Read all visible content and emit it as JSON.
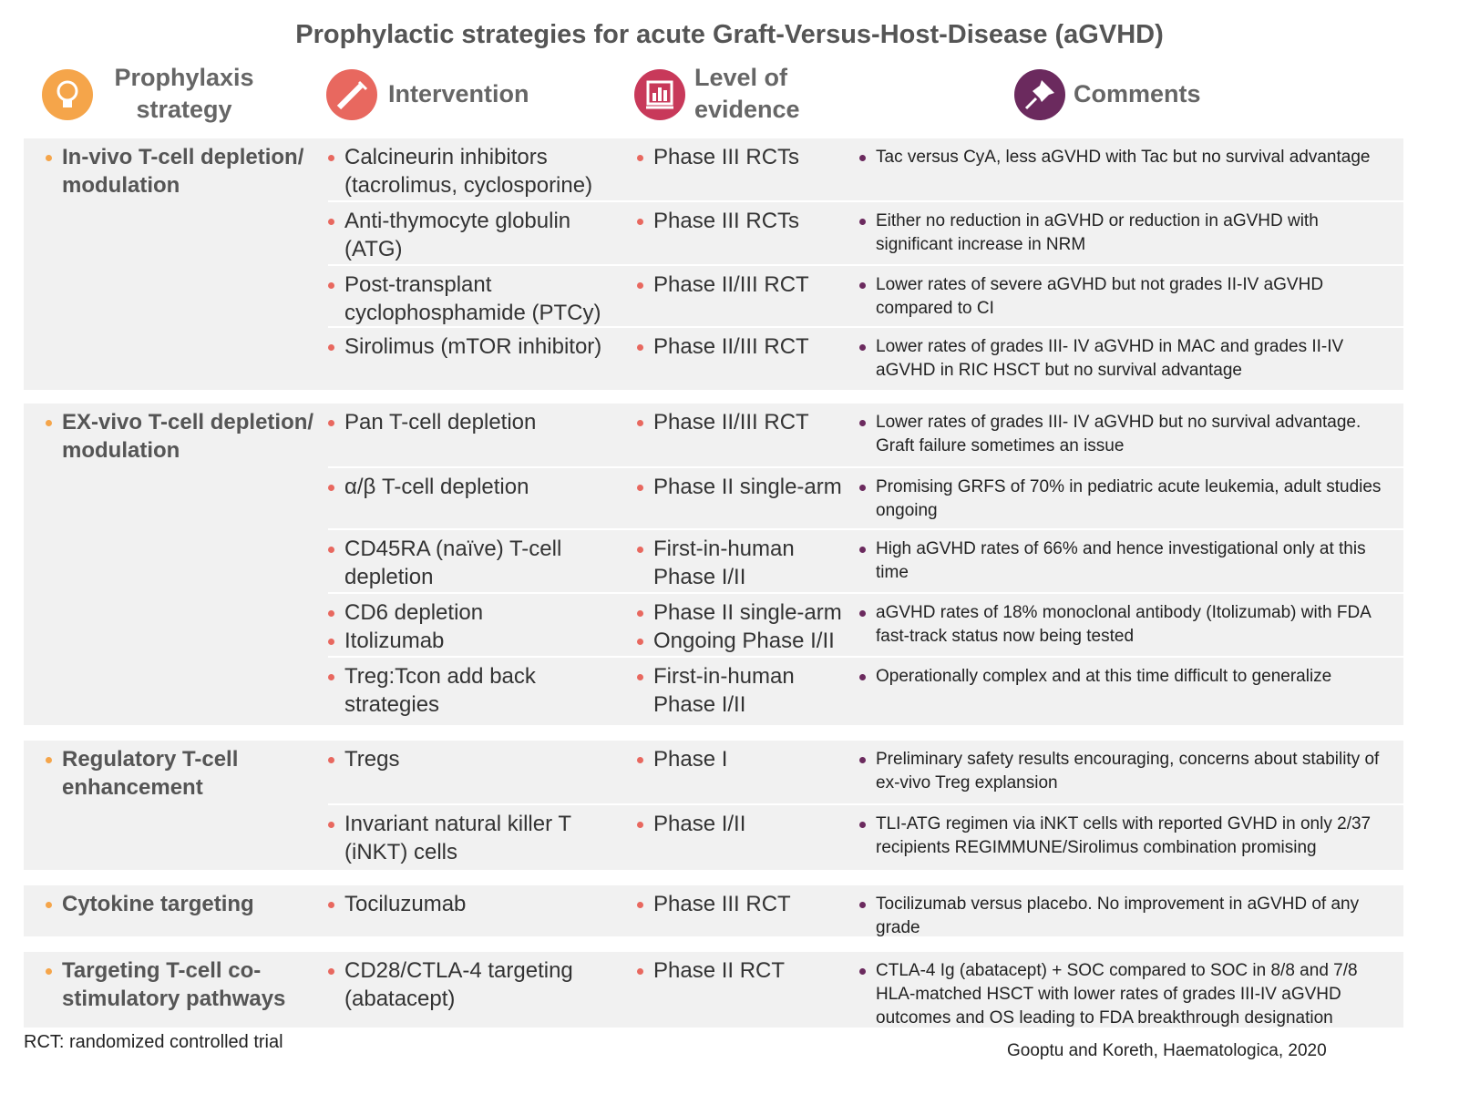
{
  "title": "Prophylactic strategies for acute Graft-Versus-Host-Disease (aGVHD)",
  "headers": [
    "Prophylaxis strategy",
    "Intervention",
    "Level of evidence",
    "Comments"
  ],
  "groups": [
    {
      "strategy": "In-vivo T-cell depletion/ modulation",
      "rows": [
        {
          "interventions": [
            "Calcineurin inhibitors (tacrolimus, cyclosporine)"
          ],
          "evidence": [
            "Phase III RCTs"
          ],
          "comment": "Tac versus CyA, less aGVHD with Tac but no survival advantage"
        },
        {
          "interventions": [
            "Anti-thymocyte globulin (ATG)"
          ],
          "evidence": [
            "Phase III RCTs"
          ],
          "comment": "Either no reduction in aGVHD or reduction in aGVHD with significant increase in NRM"
        },
        {
          "interventions": [
            "Post-transplant cyclophosphamide (PTCy)"
          ],
          "evidence": [
            "Phase II/III RCT"
          ],
          "comment": "Lower rates of severe aGVHD but not grades II-IV aGVHD compared to CI"
        },
        {
          "interventions": [
            "Sirolimus (mTOR inhibitor)"
          ],
          "evidence": [
            "Phase II/III RCT"
          ],
          "comment": "Lower rates of grades III- IV aGVHD in MAC and grades II-IV aGVHD in RIC HSCT but no survival advantage"
        }
      ]
    },
    {
      "strategy": "EX-vivo T-cell depletion/ modulation",
      "rows": [
        {
          "interventions": [
            "Pan T-cell depletion"
          ],
          "evidence": [
            "Phase II/III RCT"
          ],
          "comment": "Lower rates of grades III- IV aGVHD but no survival advantage. Graft failure sometimes an issue"
        },
        {
          "interventions": [
            "α/β T-cell depletion"
          ],
          "evidence": [
            "Phase II single-arm"
          ],
          "comment": "Promising GRFS of 70% in pediatric acute leukemia, adult studies ongoing"
        },
        {
          "interventions": [
            "CD45RA (naïve) T-cell depletion"
          ],
          "evidence": [
            "First-in-human Phase I/II"
          ],
          "comment": "High aGVHD rates of 66% and hence investigational only at this time"
        },
        {
          "interventions": [
            "CD6 depletion",
            "Itolizumab"
          ],
          "evidence": [
            "Phase II single-arm",
            "Ongoing Phase I/II"
          ],
          "comment": "aGVHD rates of 18% monoclonal antibody (Itolizumab) with FDA fast-track status now being tested"
        },
        {
          "interventions": [
            "Treg:Tcon add back strategies"
          ],
          "evidence": [
            "First-in-human Phase I/II"
          ],
          "comment": "Operationally complex and at this time difficult to generalize"
        }
      ]
    },
    {
      "strategy": "Regulatory T-cell enhancement",
      "rows": [
        {
          "interventions": [
            "Tregs"
          ],
          "evidence": [
            "Phase I"
          ],
          "comment": "Preliminary safety results encouraging, concerns about stability of ex-vivo Treg explansion"
        },
        {
          "interventions": [
            "Invariant natural killer T (iNKT) cells"
          ],
          "evidence": [
            "Phase I/II"
          ],
          "comment": "TLI-ATG regimen via iNKT cells with reported GVHD in only 2/37 recipients REGIMMUNE/Sirolimus combination promising"
        }
      ]
    },
    {
      "strategy": "Cytokine targeting",
      "rows": [
        {
          "interventions": [
            "Tociluzumab"
          ],
          "evidence": [
            "Phase III RCT"
          ],
          "comment": "Tocilizumab versus placebo. No improvement in aGVHD of any grade"
        }
      ]
    },
    {
      "strategy": "Targeting T-cell co-stimulatory pathways",
      "rows": [
        {
          "interventions": [
            "CD28/CTLA-4 targeting (abatacept)"
          ],
          "evidence": [
            "Phase II RCT"
          ],
          "comment": "CTLA-4 Ig (abatacept) + SOC compared to SOC in 8/8 and 7/8 HLA-matched HSCT with lower rates of grades III-IV aGVHD outcomes and OS leading to FDA breakthrough designation"
        }
      ]
    }
  ],
  "footnote": "RCT: randomized controlled trial",
  "source": "Gooptu and Koreth, Haematologica, 2020"
}
